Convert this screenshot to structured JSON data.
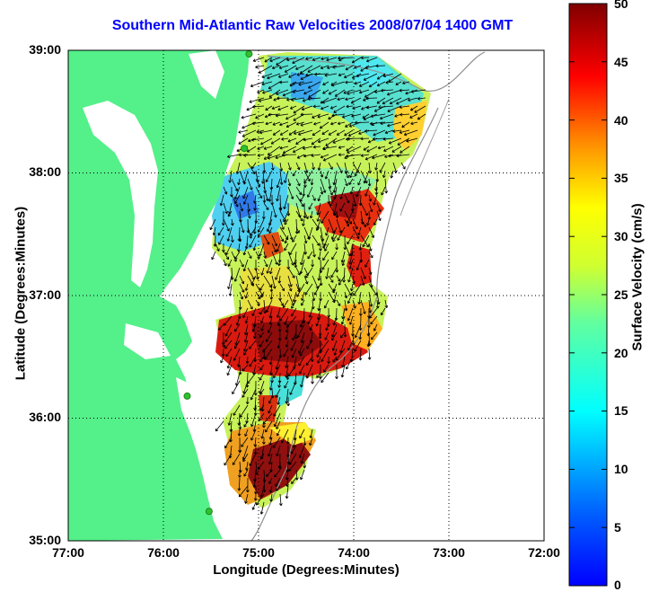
{
  "title": "Southern Mid-Atlantic Raw Velocities 2008/07/04 1400 GMT",
  "xlabel": "Longitude (Degrees:Minutes)",
  "ylabel": "Latitude (Degrees:Minutes)",
  "colorbar_label": "Surface Velocity (cm/s)",
  "x_ticks": [
    "77:00",
    "76:00",
    "75:00",
    "74:00",
    "73:00",
    "72:00"
  ],
  "y_ticks": [
    "39:00",
    "38:00",
    "37:00",
    "36:00",
    "35:00"
  ],
  "colorbar_ticks": [
    "50",
    "45",
    "40",
    "35",
    "30",
    "25",
    "20",
    "15",
    "10",
    "5",
    "0"
  ],
  "colors": {
    "land": "#54f08a",
    "title": "#0000ff",
    "station": "#30c030"
  },
  "map_extent": {
    "lon": [
      -77,
      -72
    ],
    "lat": [
      35,
      39
    ]
  },
  "colorbar_range": [
    0,
    50
  ],
  "colormap": "jet",
  "grid": "dotted",
  "stations": [
    {
      "lon": -75.1,
      "lat": 38.97
    },
    {
      "lon": -75.15,
      "lat": 38.2
    },
    {
      "lon": -75.75,
      "lat": 36.18
    },
    {
      "lon": -75.52,
      "lat": 35.24
    }
  ]
}
